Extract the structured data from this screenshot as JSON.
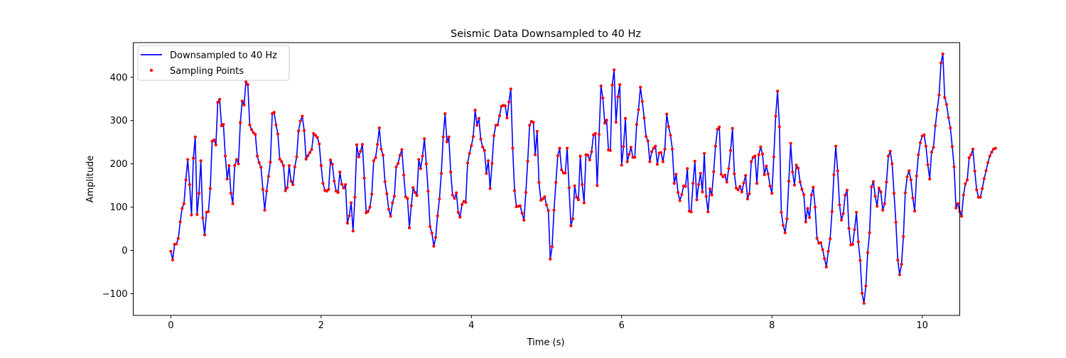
{
  "chart_data": {
    "type": "line",
    "title": "Seismic Data Downsampled to 40 Hz",
    "xlabel": "Time (s)",
    "ylabel": "Amplitude",
    "xlim": [
      -0.5,
      10.5
    ],
    "ylim": [
      -150,
      480
    ],
    "xticks": [
      0,
      2,
      4,
      6,
      8,
      10
    ],
    "yticks": [
      -100,
      0,
      100,
      200,
      300,
      400
    ],
    "grid": false,
    "legend_position": "upper left",
    "series": [
      {
        "name": "Downsampled to 40 Hz",
        "style": "line",
        "color": "#0000ff"
      },
      {
        "name": "Sampling Points",
        "style": "markers",
        "color": "#ff0000"
      }
    ],
    "x_step": 0.025,
    "values": [
      -2,
      -22,
      14,
      15,
      28,
      66,
      97,
      108,
      163,
      210,
      152,
      82,
      213,
      262,
      83,
      132,
      207,
      75,
      36,
      88,
      90,
      143,
      252,
      255,
      244,
      342,
      349,
      288,
      291,
      218,
      165,
      196,
      132,
      108,
      196,
      210,
      200,
      295,
      345,
      336,
      390,
      383,
      290,
      279,
      272,
      268,
      218,
      203,
      192,
      141,
      93,
      137,
      171,
      204,
      316,
      319,
      290,
      269,
      211,
      205,
      196,
      138,
      145,
      196,
      160,
      152,
      193,
      216,
      276,
      299,
      310,
      277,
      211,
      219,
      226,
      233,
      270,
      266,
      261,
      246,
      196,
      155,
      139,
      137,
      141,
      209,
      199,
      160,
      137,
      134,
      181,
      153,
      144,
      152,
      63,
      80,
      110,
      45,
      123,
      244,
      216,
      229,
      245,
      167,
      87,
      90,
      100,
      130,
      207,
      214,
      245,
      283,
      234,
      220,
      159,
      131,
      95,
      79,
      110,
      125,
      193,
      201,
      220,
      233,
      174,
      124,
      120,
      52,
      103,
      145,
      134,
      127,
      210,
      189,
      218,
      258,
      200,
      137,
      55,
      40,
      10,
      30,
      80,
      119,
      178,
      262,
      316,
      251,
      262,
      181,
      128,
      120,
      133,
      88,
      77,
      106,
      113,
      111,
      202,
      224,
      242,
      263,
      324,
      289,
      305,
      257,
      239,
      231,
      178,
      207,
      143,
      201,
      265,
      289,
      290,
      311,
      333,
      335,
      334,
      306,
      343,
      373,
      236,
      138,
      101,
      102,
      103,
      86,
      70,
      134,
      206,
      289,
      298,
      296,
      221,
      275,
      157,
      116,
      119,
      124,
      105,
      92,
      -20,
      9,
      93,
      157,
      219,
      236,
      186,
      179,
      179,
      236,
      145,
      57,
      73,
      149,
      123,
      117,
      218,
      152,
      110,
      221,
      220,
      209,
      228,
      267,
      270,
      150,
      268,
      380,
      352,
      294,
      301,
      232,
      231,
      382,
      417,
      296,
      355,
      383,
      197,
      240,
      305,
      205,
      222,
      238,
      215,
      215,
      291,
      325,
      377,
      344,
      306,
      263,
      253,
      205,
      228,
      236,
      241,
      199,
      225,
      226,
      205,
      234,
      315,
      286,
      266,
      234,
      155,
      176,
      134,
      115,
      129,
      149,
      148,
      189,
      91,
      89,
      155,
      206,
      117,
      152,
      178,
      135,
      224,
      125,
      89,
      142,
      128,
      182,
      241,
      280,
      285,
      176,
      170,
      174,
      158,
      189,
      231,
      282,
      177,
      144,
      140,
      148,
      135,
      156,
      173,
      119,
      131,
      205,
      215,
      218,
      155,
      221,
      239,
      223,
      175,
      195,
      177,
      149,
      132,
      216,
      310,
      368,
      286,
      88,
      58,
      41,
      73,
      160,
      247,
      181,
      151,
      197,
      190,
      158,
      141,
      129,
      66,
      97,
      76,
      128,
      146,
      100,
      28,
      17,
      18,
      2,
      -19,
      -38,
      -2,
      27,
      90,
      175,
      241,
      184,
      105,
      70,
      85,
      128,
      139,
      51,
      13,
      14,
      48,
      88,
      20,
      -23,
      -99,
      -122,
      -82,
      -5,
      41,
      147,
      159,
      125,
      102,
      144,
      135,
      93,
      108,
      158,
      218,
      229,
      200,
      132,
      65,
      -22,
      -56,
      -32,
      32,
      133,
      170,
      184,
      163,
      121,
      91,
      172,
      221,
      249,
      264,
      267,
      241,
      198,
      165,
      227,
      238,
      288,
      325,
      359,
      433,
      454,
      353,
      337,
      307,
      283,
      240,
      193,
      98,
      108,
      90,
      79,
      128,
      154,
      163,
      214,
      221,
      234,
      183,
      140,
      123,
      123,
      143,
      166,
      184,
      203,
      218,
      227,
      234,
      236
    ],
    "sample_values": [
      -2,
      -22,
      14,
      15,
      28,
      66,
      97,
      108,
      163,
      210,
      152,
      82,
      213,
      262,
      83,
      132,
      207,
      75,
      36,
      88,
      90,
      143,
      252,
      255,
      244,
      342,
      349,
      288,
      291,
      218,
      165,
      196,
      132,
      108,
      196,
      210,
      200,
      295,
      345,
      336,
      390,
      383,
      290,
      279,
      272,
      268,
      218,
      203,
      192,
      141,
      93,
      137,
      171,
      204,
      316,
      319,
      290,
      269,
      211,
      205,
      196,
      138,
      145,
      196,
      160,
      152,
      193,
      216,
      276,
      299,
      310,
      277,
      211,
      219,
      226,
      233,
      270,
      266,
      261,
      246,
      196,
      155,
      139,
      137,
      141,
      209,
      199,
      160,
      137,
      134,
      181,
      153,
      144,
      152,
      63,
      80,
      110,
      45,
      123,
      244,
      216,
      229,
      245,
      167,
      87,
      90,
      100,
      130,
      207,
      214,
      245,
      283,
      234,
      220,
      159,
      131,
      95,
      79,
      110,
      125,
      193,
      201,
      220,
      233,
      174,
      124,
      120,
      52,
      103,
      145,
      134,
      127,
      210,
      189,
      218,
      258,
      200,
      137,
      55,
      40,
      10,
      30,
      80,
      119,
      178,
      262,
      316,
      251,
      262,
      181,
      128,
      120,
      133,
      88,
      77,
      106,
      113,
      111,
      202,
      224,
      242,
      263,
      324,
      289,
      305,
      257,
      239,
      231,
      178,
      207,
      143,
      201,
      265,
      289,
      290,
      311,
      333,
      335,
      334,
      306,
      343,
      373,
      236,
      138,
      101,
      102,
      103,
      86,
      70,
      134,
      206,
      289,
      298,
      296,
      221,
      275,
      157,
      116,
      119,
      124,
      105,
      92,
      -20,
      9,
      93,
      157,
      219,
      236,
      186,
      179,
      179,
      236,
      145,
      57,
      73,
      149,
      123,
      117,
      218,
      152,
      110,
      221,
      220,
      209,
      228,
      267,
      270,
      150,
      268,
      380,
      352,
      294,
      301,
      232,
      231,
      382,
      417,
      296,
      355,
      383,
      197,
      240,
      305,
      205,
      222,
      238,
      215,
      215,
      291,
      325,
      377,
      344,
      306,
      263,
      253,
      205,
      228,
      236,
      241,
      199,
      225,
      226,
      205,
      234,
      315,
      286,
      266,
      234,
      155,
      176,
      134,
      115,
      129,
      149,
      148,
      189,
      91,
      89,
      155,
      206,
      117,
      152,
      178,
      135,
      224,
      125,
      89,
      142,
      128,
      182,
      241,
      280,
      285,
      176,
      170,
      174,
      158,
      189,
      231,
      282,
      177,
      144,
      140,
      148,
      135,
      156,
      173,
      119,
      131,
      205,
      215,
      218,
      155,
      221,
      239,
      223,
      175,
      195,
      177,
      149,
      132,
      216,
      310,
      368,
      286,
      88,
      58,
      41,
      73,
      160,
      247,
      181,
      151,
      197,
      190,
      158,
      141,
      129,
      66,
      97,
      76,
      128,
      146,
      100,
      28,
      17,
      18,
      2,
      -19,
      -38,
      -2,
      27,
      90,
      175,
      241,
      184,
      105,
      70,
      85,
      128,
      139,
      51,
      13,
      14,
      48,
      88,
      20,
      -23,
      -99,
      -122,
      -82,
      -5,
      41,
      147,
      159,
      125,
      102,
      144,
      135,
      93,
      108,
      158,
      218,
      229,
      200,
      132,
      65,
      -22,
      -56,
      -32,
      32,
      133,
      170,
      184,
      163,
      121,
      91,
      172,
      221,
      249,
      264,
      267,
      241,
      198,
      165,
      227,
      238,
      288,
      325,
      359,
      433,
      454,
      353,
      337,
      307,
      283,
      240,
      193,
      98,
      108,
      90,
      79,
      128,
      154,
      163,
      214,
      221,
      234,
      183,
      140,
      123,
      123,
      143,
      166,
      184,
      203,
      218,
      227,
      234,
      236
    ]
  }
}
